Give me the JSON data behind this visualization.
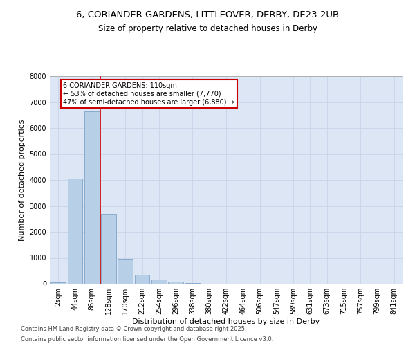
{
  "title1": "6, CORIANDER GARDENS, LITTLEOVER, DERBY, DE23 2UB",
  "title2": "Size of property relative to detached houses in Derby",
  "xlabel": "Distribution of detached houses by size in Derby",
  "ylabel": "Number of detached properties",
  "categories": [
    "2sqm",
    "44sqm",
    "86sqm",
    "128sqm",
    "170sqm",
    "212sqm",
    "254sqm",
    "296sqm",
    "338sqm",
    "380sqm",
    "422sqm",
    "464sqm",
    "506sqm",
    "547sqm",
    "589sqm",
    "631sqm",
    "673sqm",
    "715sqm",
    "757sqm",
    "799sqm",
    "841sqm"
  ],
  "values": [
    60,
    4050,
    6650,
    2700,
    970,
    360,
    150,
    80,
    40,
    0,
    0,
    0,
    0,
    0,
    0,
    0,
    0,
    0,
    0,
    0,
    0
  ],
  "bar_color": "#b8cfe8",
  "bar_edge_color": "#7098c0",
  "vline_x_index": 2.52,
  "vline_color": "#cc0000",
  "annotation_text": "6 CORIANDER GARDENS: 110sqm\n← 53% of detached houses are smaller (7,770)\n47% of semi-detached houses are larger (6,880) →",
  "annotation_box_color": "#cc0000",
  "ylim": [
    0,
    8000
  ],
  "yticks": [
    0,
    1000,
    2000,
    3000,
    4000,
    5000,
    6000,
    7000,
    8000
  ],
  "grid_color": "#c8d4e8",
  "bg_color": "#dce6f5",
  "footnote1": "Contains HM Land Registry data © Crown copyright and database right 2025.",
  "footnote2": "Contains public sector information licensed under the Open Government Licence v3.0.",
  "title1_fontsize": 9.5,
  "title2_fontsize": 8.5,
  "xlabel_fontsize": 8,
  "ylabel_fontsize": 8,
  "tick_fontsize": 7,
  "annotation_fontsize": 7,
  "footnote_fontsize": 6
}
